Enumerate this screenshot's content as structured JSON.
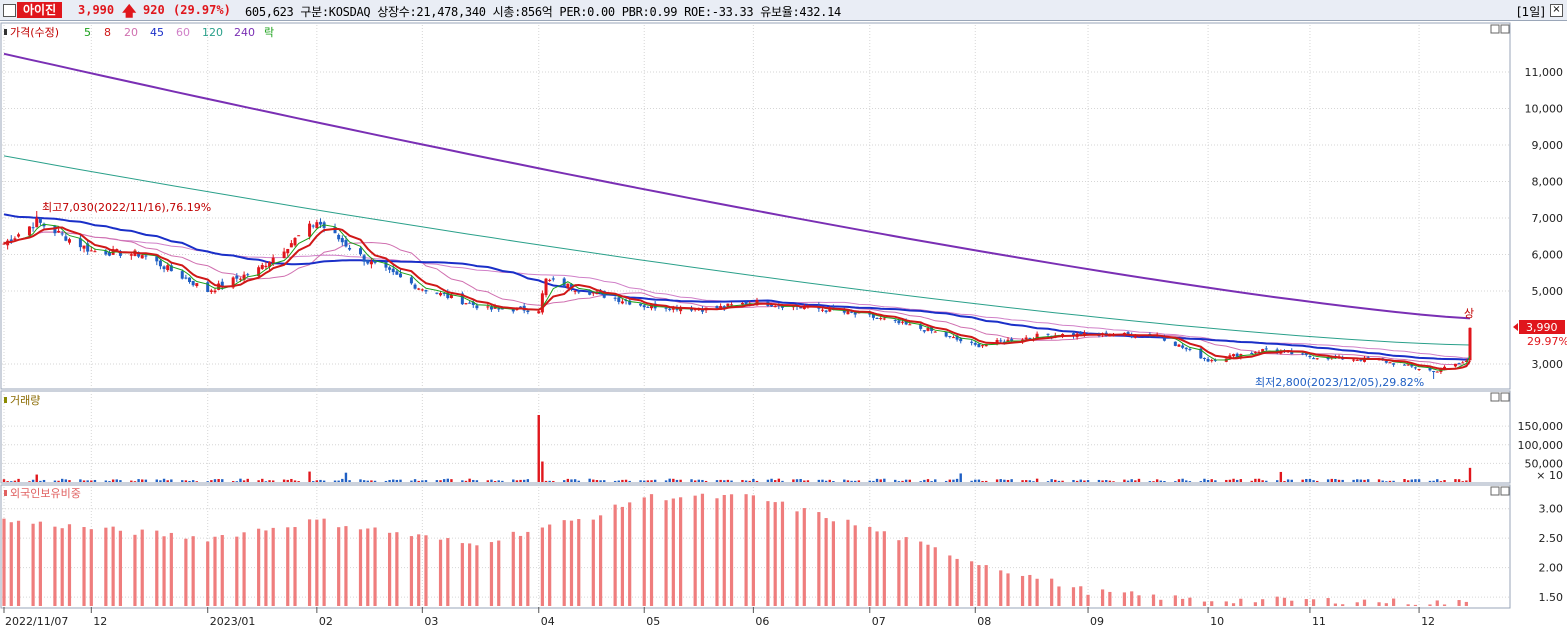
{
  "header": {
    "stock_name": "아이진",
    "price": "3,990",
    "change": "920",
    "change_pct": "(29.97%)",
    "info_text": "605,623  구분:KOSDAQ 상장수:21,478,340 시총:856억 PER:0.00 PBR:0.99 ROE:-33.33 유보율:432.14",
    "period": "[1일]"
  },
  "colors": {
    "up": "#e0161c",
    "down": "#1f5fc4",
    "ma5": "#1aa01a",
    "ma8": "#d01818",
    "ma20": "#d070b0",
    "ma45": "#1a2fc8",
    "ma60": "#d080c8",
    "ma120": "#2aa08a",
    "ma240": "#7a2fb4",
    "foreign": "#ef7d7d",
    "grid": "#d6d6d6"
  },
  "price_panel": {
    "legend": [
      "가격(수정)",
      "5",
      "8",
      "20",
      "45",
      "60",
      "120",
      "240",
      "락"
    ],
    "high_note": "최고7,030(2022/11/16),76.19%",
    "low_note": "최저2,800(2023/12/05),29.82%",
    "last_price": "3,990",
    "last_pct": "29.97%",
    "upper_limit_mark": "상",
    "y_ticks": [
      "11,000",
      "10,000",
      "9,000",
      "8,000",
      "7,000",
      "6,000",
      "5,000",
      "3,000"
    ]
  },
  "volume_panel": {
    "label": "거래량",
    "y_ticks": [
      "150,000",
      "100,000",
      "50,000"
    ],
    "unit": "× 10"
  },
  "foreign_panel": {
    "label": "외국인보유비중",
    "y_ticks": [
      "3.00",
      "2.50",
      "2.00",
      "1.50"
    ]
  },
  "x_labels": [
    "2022/11/07",
    "12",
    "2023/01",
    "02",
    "03",
    "04",
    "05",
    "06",
    "07",
    "08",
    "09",
    "10",
    "11",
    "12"
  ],
  "chart_data": {
    "type": "candlestick",
    "x_ticks": [
      "2022/11/07",
      "12",
      "2023/01",
      "02",
      "03",
      "04",
      "05",
      "06",
      "07",
      "08",
      "09",
      "10",
      "11",
      "12"
    ],
    "close_series": [
      {
        "date": "2022-11-07",
        "close": 6300
      },
      {
        "date": "2022-11-16",
        "close": 6900
      },
      {
        "date": "2022-12-01",
        "close": 6100
      },
      {
        "date": "2022-12-15",
        "close": 6000
      },
      {
        "date": "2023-01-02",
        "close": 5000
      },
      {
        "date": "2023-01-16",
        "close": 5600
      },
      {
        "date": "2023-02-01",
        "close": 6900
      },
      {
        "date": "2023-02-15",
        "close": 5800
      },
      {
        "date": "2023-03-01",
        "close": 5100
      },
      {
        "date": "2023-03-20",
        "close": 4500
      },
      {
        "date": "2023-04-03",
        "close": 4500
      },
      {
        "date": "2023-04-05",
        "close": 5300
      },
      {
        "date": "2023-04-20",
        "close": 4900
      },
      {
        "date": "2023-05-02",
        "close": 4600
      },
      {
        "date": "2023-05-20",
        "close": 4500
      },
      {
        "date": "2023-06-01",
        "close": 4700
      },
      {
        "date": "2023-06-20",
        "close": 4500
      },
      {
        "date": "2023-07-03",
        "close": 4300
      },
      {
        "date": "2023-07-20",
        "close": 3900
      },
      {
        "date": "2023-08-01",
        "close": 3500
      },
      {
        "date": "2023-08-20",
        "close": 3800
      },
      {
        "date": "2023-09-01",
        "close": 3800
      },
      {
        "date": "2023-09-20",
        "close": 3800
      },
      {
        "date": "2023-10-04",
        "close": 3100
      },
      {
        "date": "2023-10-20",
        "close": 3400
      },
      {
        "date": "2023-11-01",
        "close": 3200
      },
      {
        "date": "2023-11-20",
        "close": 3100
      },
      {
        "date": "2023-12-05",
        "close": 2800
      },
      {
        "date": "2023-12-14",
        "close": 3070
      },
      {
        "date": "2023-12-15",
        "close": 3990
      }
    ],
    "moving_averages": {
      "ma240": {
        "start": 11500,
        "end": 4250
      },
      "ma120": {
        "start": 8700,
        "end": 3520
      },
      "ma45": {
        "start": 7100,
        "end": 3150
      }
    },
    "volume_x10": {
      "2022-11-16": 20000,
      "2023-01-30": 28000,
      "2023-02-09": 25000,
      "2023-04-03": 180000,
      "2023-04-04": 55000,
      "2023-07-28": 23000,
      "2023-10-24": 27000,
      "2023-12-15": 38000
    },
    "foreign_ratio_pct": {
      "2022-11-07": 2.8,
      "2023-01-02": 2.5,
      "2023-02-01": 2.8,
      "2023-03-15": 2.4,
      "2023-04-20": 2.9,
      "2023-05-01": 3.2,
      "2023-06-01": 3.2,
      "2023-07-01": 2.7,
      "2023-08-01": 2.1,
      "2023-09-01": 1.6,
      "2023-10-01": 1.45,
      "2023-11-01": 1.45,
      "2023-12-15": 1.4
    },
    "y_price_range": [
      2800,
      11500
    ],
    "y_volume_range": [
      0,
      180000
    ],
    "y_foreign_range": [
      1.35,
      3.3
    ]
  }
}
